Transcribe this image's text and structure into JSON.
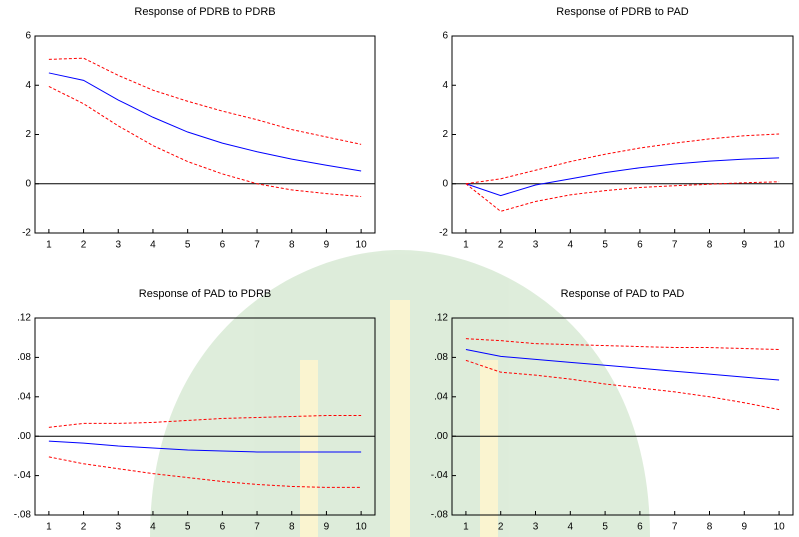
{
  "chart_data": [
    {
      "type": "line",
      "title": "Response of PDRB to PDRB",
      "x": [
        1,
        2,
        3,
        4,
        5,
        6,
        7,
        8,
        9,
        10
      ],
      "xlim": [
        0.6,
        10.4
      ],
      "xticks": [
        1,
        2,
        3,
        4,
        5,
        6,
        7,
        8,
        9,
        10
      ],
      "ylim": [
        -2,
        6
      ],
      "yticks": [
        -2,
        0,
        2,
        4,
        6
      ],
      "zero_line": true,
      "series": [
        {
          "color": "#0000ff",
          "dashed": false,
          "values": [
            4.5,
            4.2,
            3.4,
            2.7,
            2.1,
            1.65,
            1.3,
            1.0,
            0.75,
            0.52
          ]
        },
        {
          "color": "#ff0000",
          "dashed": true,
          "values": [
            5.05,
            5.1,
            4.4,
            3.8,
            3.35,
            2.95,
            2.6,
            2.2,
            1.9,
            1.6
          ]
        },
        {
          "color": "#ff0000",
          "dashed": true,
          "values": [
            3.95,
            3.25,
            2.35,
            1.55,
            0.9,
            0.4,
            0.0,
            -0.25,
            -0.4,
            -0.52
          ]
        }
      ]
    },
    {
      "type": "line",
      "title": "Response of PDRB to PAD",
      "x": [
        1,
        2,
        3,
        4,
        5,
        6,
        7,
        8,
        9,
        10
      ],
      "xlim": [
        0.6,
        10.4
      ],
      "xticks": [
        1,
        2,
        3,
        4,
        5,
        6,
        7,
        8,
        9,
        10
      ],
      "ylim": [
        -2,
        6
      ],
      "yticks": [
        -2,
        0,
        2,
        4,
        6
      ],
      "zero_line": true,
      "series": [
        {
          "color": "#0000ff",
          "dashed": false,
          "values": [
            0,
            -0.48,
            -0.05,
            0.2,
            0.45,
            0.65,
            0.8,
            0.92,
            1.0,
            1.05
          ]
        },
        {
          "color": "#ff0000",
          "dashed": true,
          "values": [
            0,
            0.2,
            0.55,
            0.9,
            1.2,
            1.45,
            1.65,
            1.82,
            1.95,
            2.02
          ]
        },
        {
          "color": "#ff0000",
          "dashed": true,
          "values": [
            0,
            -1.12,
            -0.72,
            -0.45,
            -0.28,
            -0.15,
            -0.08,
            -0.02,
            0.04,
            0.08
          ]
        }
      ]
    },
    {
      "type": "line",
      "title": "Response of PAD to PDRB",
      "x": [
        1,
        2,
        3,
        4,
        5,
        6,
        7,
        8,
        9,
        10
      ],
      "xlim": [
        0.6,
        10.4
      ],
      "xticks": [
        1,
        2,
        3,
        4,
        5,
        6,
        7,
        8,
        9,
        10
      ],
      "ylim": [
        -0.08,
        0.12
      ],
      "yticks": [
        {
          "value": -0.08,
          "label": "-.08"
        },
        {
          "value": -0.04,
          "label": "-.04"
        },
        {
          "value": 0,
          "label": ".00"
        },
        {
          "value": 0.04,
          "label": ".04"
        },
        {
          "value": 0.08,
          "label": ".08"
        },
        {
          "value": 0.12,
          "label": ".12"
        }
      ],
      "zero_line": true,
      "series": [
        {
          "color": "#0000ff",
          "dashed": false,
          "values": [
            -0.005,
            -0.007,
            -0.01,
            -0.012,
            -0.014,
            -0.015,
            -0.016,
            -0.016,
            -0.016,
            -0.016
          ]
        },
        {
          "color": "#ff0000",
          "dashed": true,
          "values": [
            0.009,
            0.013,
            0.013,
            0.014,
            0.016,
            0.018,
            0.019,
            0.02,
            0.021,
            0.021
          ]
        },
        {
          "color": "#ff0000",
          "dashed": true,
          "values": [
            -0.021,
            -0.028,
            -0.033,
            -0.038,
            -0.042,
            -0.046,
            -0.049,
            -0.051,
            -0.052,
            -0.052
          ]
        }
      ]
    },
    {
      "type": "line",
      "title": "Response of PAD to PAD",
      "x": [
        1,
        2,
        3,
        4,
        5,
        6,
        7,
        8,
        9,
        10
      ],
      "xlim": [
        0.6,
        10.4
      ],
      "xticks": [
        1,
        2,
        3,
        4,
        5,
        6,
        7,
        8,
        9,
        10
      ],
      "ylim": [
        -0.08,
        0.12
      ],
      "yticks": [
        {
          "value": -0.08,
          "label": "-.08"
        },
        {
          "value": -0.04,
          "label": "-.04"
        },
        {
          "value": 0,
          "label": ".00"
        },
        {
          "value": 0.04,
          "label": ".04"
        },
        {
          "value": 0.08,
          "label": ".08"
        },
        {
          "value": 0.12,
          "label": ".12"
        }
      ],
      "zero_line": true,
      "series": [
        {
          "color": "#0000ff",
          "dashed": false,
          "values": [
            0.088,
            0.081,
            0.078,
            0.075,
            0.072,
            0.069,
            0.066,
            0.063,
            0.06,
            0.057
          ]
        },
        {
          "color": "#ff0000",
          "dashed": true,
          "values": [
            0.099,
            0.097,
            0.094,
            0.093,
            0.092,
            0.091,
            0.09,
            0.09,
            0.089,
            0.088
          ]
        },
        {
          "color": "#ff0000",
          "dashed": true,
          "values": [
            0.077,
            0.065,
            0.062,
            0.058,
            0.053,
            0.049,
            0.045,
            0.04,
            0.034,
            0.027
          ]
        }
      ]
    }
  ]
}
